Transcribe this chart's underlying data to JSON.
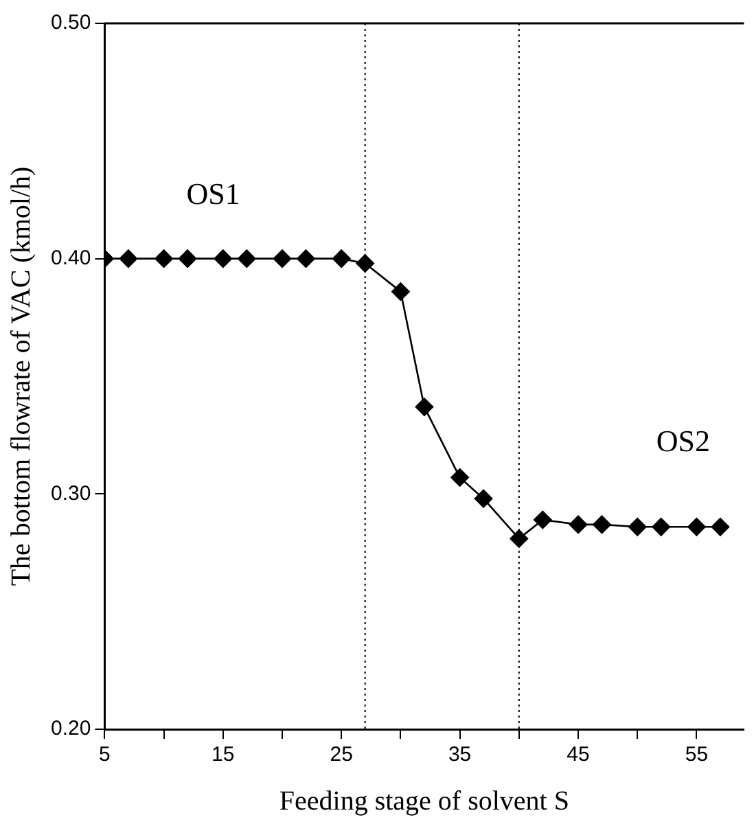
{
  "chart_data": {
    "type": "line",
    "xlabel": "Feeding stage of solvent S",
    "ylabel": "The bottom flowrate of VAC (kmol/h)",
    "x": [
      5,
      7,
      10,
      12,
      15,
      17,
      20,
      22,
      25,
      27,
      30,
      32,
      35,
      37,
      40,
      42,
      45,
      47,
      50,
      52,
      55,
      57
    ],
    "series": [
      {
        "color": "#000000",
        "values": [
          0.4,
          0.4,
          0.4,
          0.4,
          0.4,
          0.4,
          0.4,
          0.4,
          0.4,
          0.398,
          0.386,
          0.337,
          0.307,
          0.298,
          0.281,
          0.289,
          0.287,
          0.287,
          0.286,
          0.286,
          0.286,
          0.286
        ]
      }
    ],
    "marker": "diamond",
    "xlim": [
      5,
      59
    ],
    "ylim": [
      0.2,
      0.5
    ],
    "xticks": [
      5,
      {
        "value": 10,
        "label": null
      },
      15,
      {
        "value": 20,
        "label": null
      },
      25,
      {
        "value": 30,
        "label": null
      },
      35,
      {
        "value": 40,
        "label": null
      },
      45,
      {
        "value": 50,
        "label": null
      },
      55
    ],
    "yticks": [
      {
        "value": 0.2,
        "label": "0.20"
      },
      {
        "value": 0.3,
        "label": "0.30"
      },
      {
        "value": 0.4,
        "label": "0.40"
      },
      {
        "value": 0.5,
        "label": "0.50"
      }
    ],
    "grid": false,
    "legend": false,
    "ref_lines": [
      {
        "axis": "x",
        "value": 27,
        "line_style": "dotted",
        "color": "#000000"
      },
      {
        "axis": "x",
        "value": 40,
        "line_style": "dotted",
        "color": "#000000"
      }
    ],
    "annotations": [
      "OS1",
      "OS2"
    ]
  }
}
